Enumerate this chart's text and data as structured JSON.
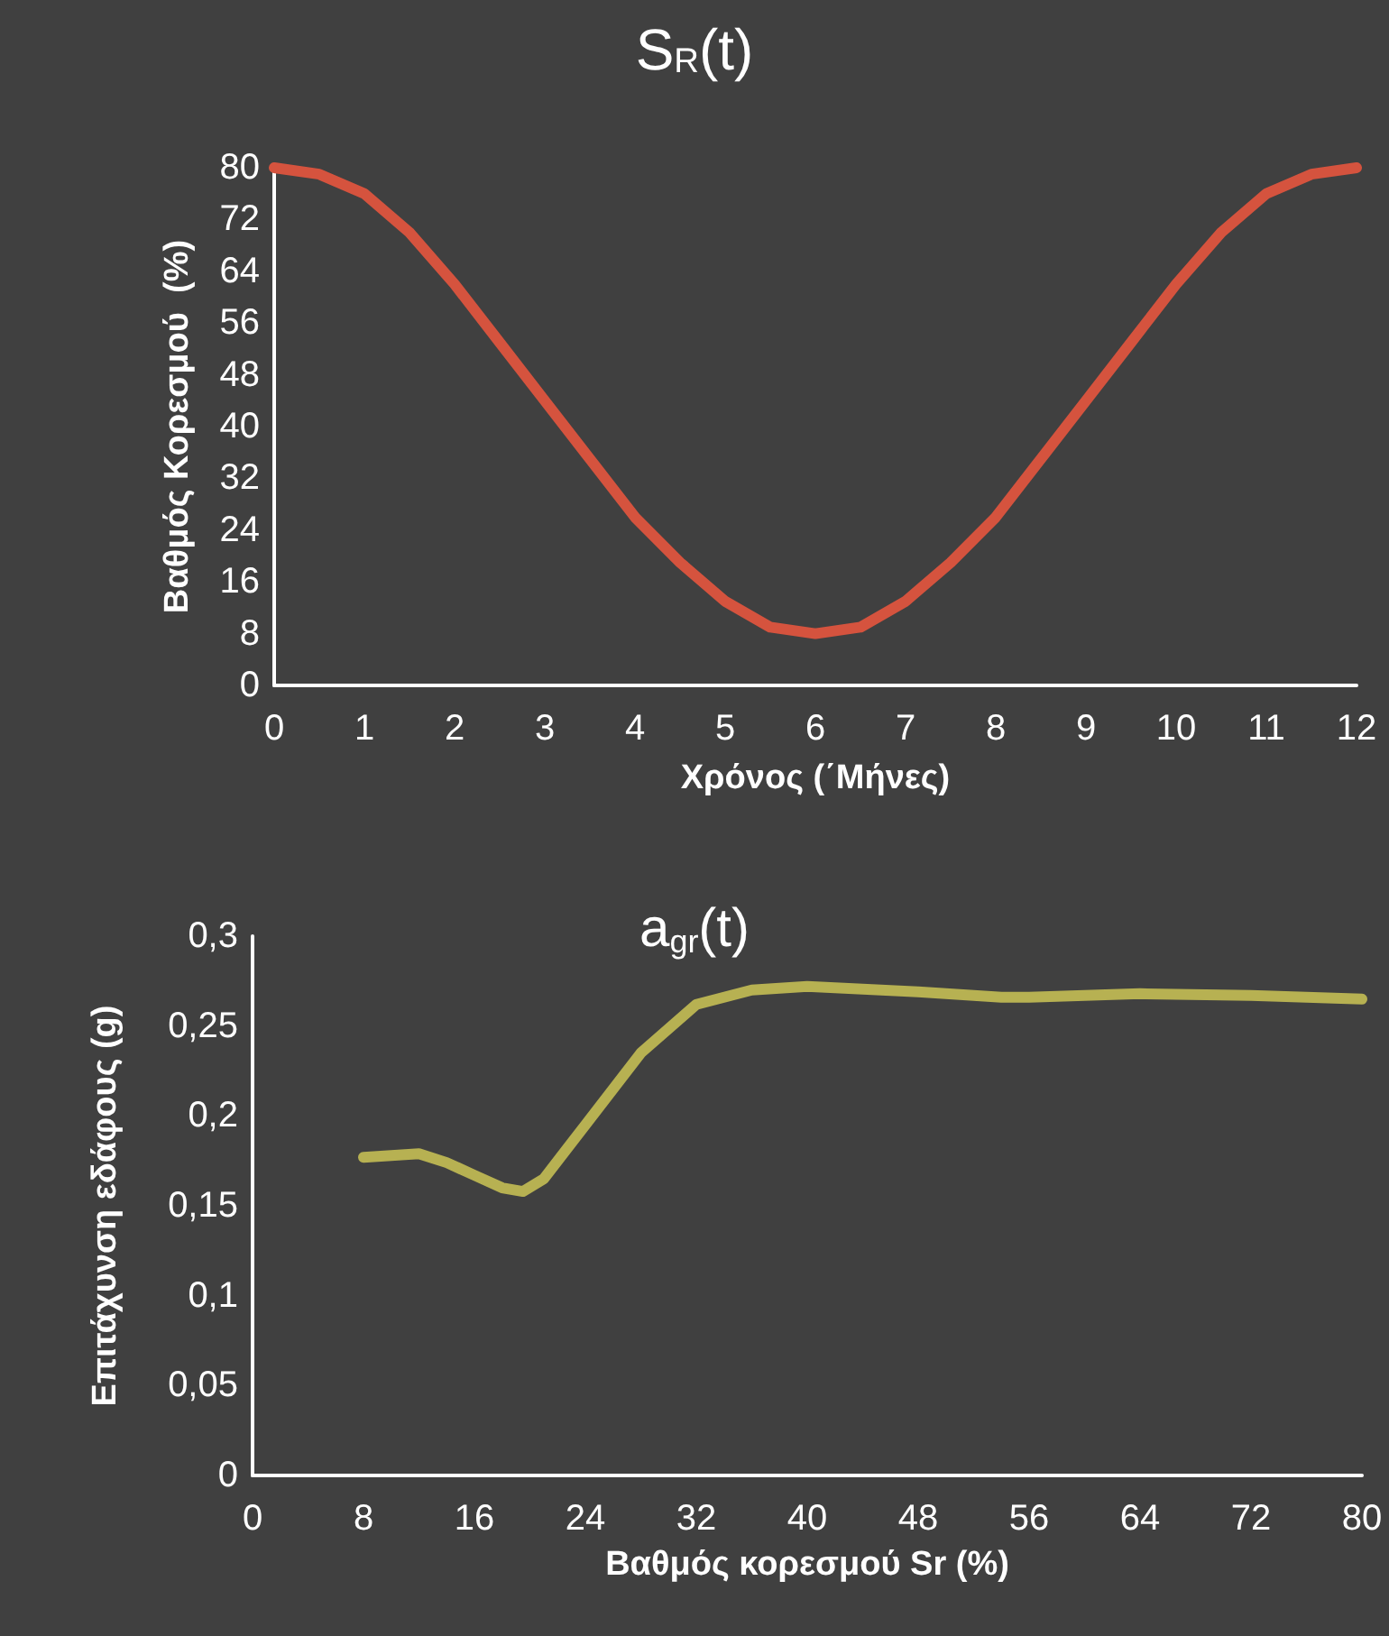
{
  "chart_data": [
    {
      "type": "line",
      "title": "S$_{R}$(t)",
      "xlabel": "Χρόνος (΄Μήνες)",
      "ylabel": "Βαθμός Κορεσμού  (%)",
      "marker": "none",
      "line_style": "solid",
      "x": [
        0,
        0.5,
        1,
        1.5,
        2,
        2.5,
        3,
        3.5,
        4,
        4.5,
        5,
        5.5,
        6,
        6.5,
        7,
        7.5,
        8,
        8.5,
        9,
        9.5,
        10,
        10.5,
        11,
        11.5,
        12
      ],
      "series": [
        {
          "color": "#d5533e",
          "values": [
            80,
            79,
            76,
            70,
            62,
            53,
            44,
            35,
            26,
            19,
            13,
            9,
            8,
            9,
            13,
            19,
            26,
            35,
            44,
            53,
            62,
            70,
            76,
            79,
            80
          ]
        }
      ],
      "xlim": [
        0,
        12
      ],
      "xticks": [
        0,
        1,
        2,
        3,
        4,
        5,
        6,
        7,
        8,
        9,
        10,
        11,
        12
      ],
      "ylim": [
        0,
        80
      ],
      "yticks": [
        0,
        8,
        16,
        24,
        32,
        40,
        48,
        56,
        64,
        72,
        80
      ]
    },
    {
      "type": "line",
      "title": "a$_{gr}$(t)",
      "xlabel": "Βαθμός κορεσμού Sr (%)",
      "ylabel": "Επιτάχυνση εδάφους (g)",
      "marker": "none",
      "line_style": "solid",
      "x": [
        8,
        10,
        12,
        14,
        16,
        18,
        19.5,
        21,
        24,
        28,
        32,
        36,
        40,
        48,
        54,
        56,
        64,
        72,
        80
      ],
      "series": [
        {
          "color": "#b7b152",
          "values": [
            0.177,
            0.178,
            0.179,
            0.174,
            0.167,
            0.16,
            0.158,
            0.165,
            0.195,
            0.235,
            0.262,
            0.27,
            0.272,
            0.269,
            0.266,
            0.266,
            0.268,
            0.267,
            0.265
          ]
        }
      ],
      "xlim": [
        0,
        80
      ],
      "xticks": [
        0,
        8,
        16,
        24,
        32,
        40,
        48,
        56,
        64,
        72,
        80
      ],
      "ylim": [
        0,
        0.3
      ],
      "yticks": [
        0,
        {
          "value": 0.05,
          "label": "0,05"
        },
        {
          "value": 0.1,
          "label": "0,1"
        },
        {
          "value": 0.15,
          "label": "0,15"
        },
        {
          "value": 0.2,
          "label": "0,2"
        },
        {
          "value": 0.25,
          "label": "0,25"
        },
        {
          "value": 0.3,
          "label": "0,3"
        }
      ]
    }
  ]
}
